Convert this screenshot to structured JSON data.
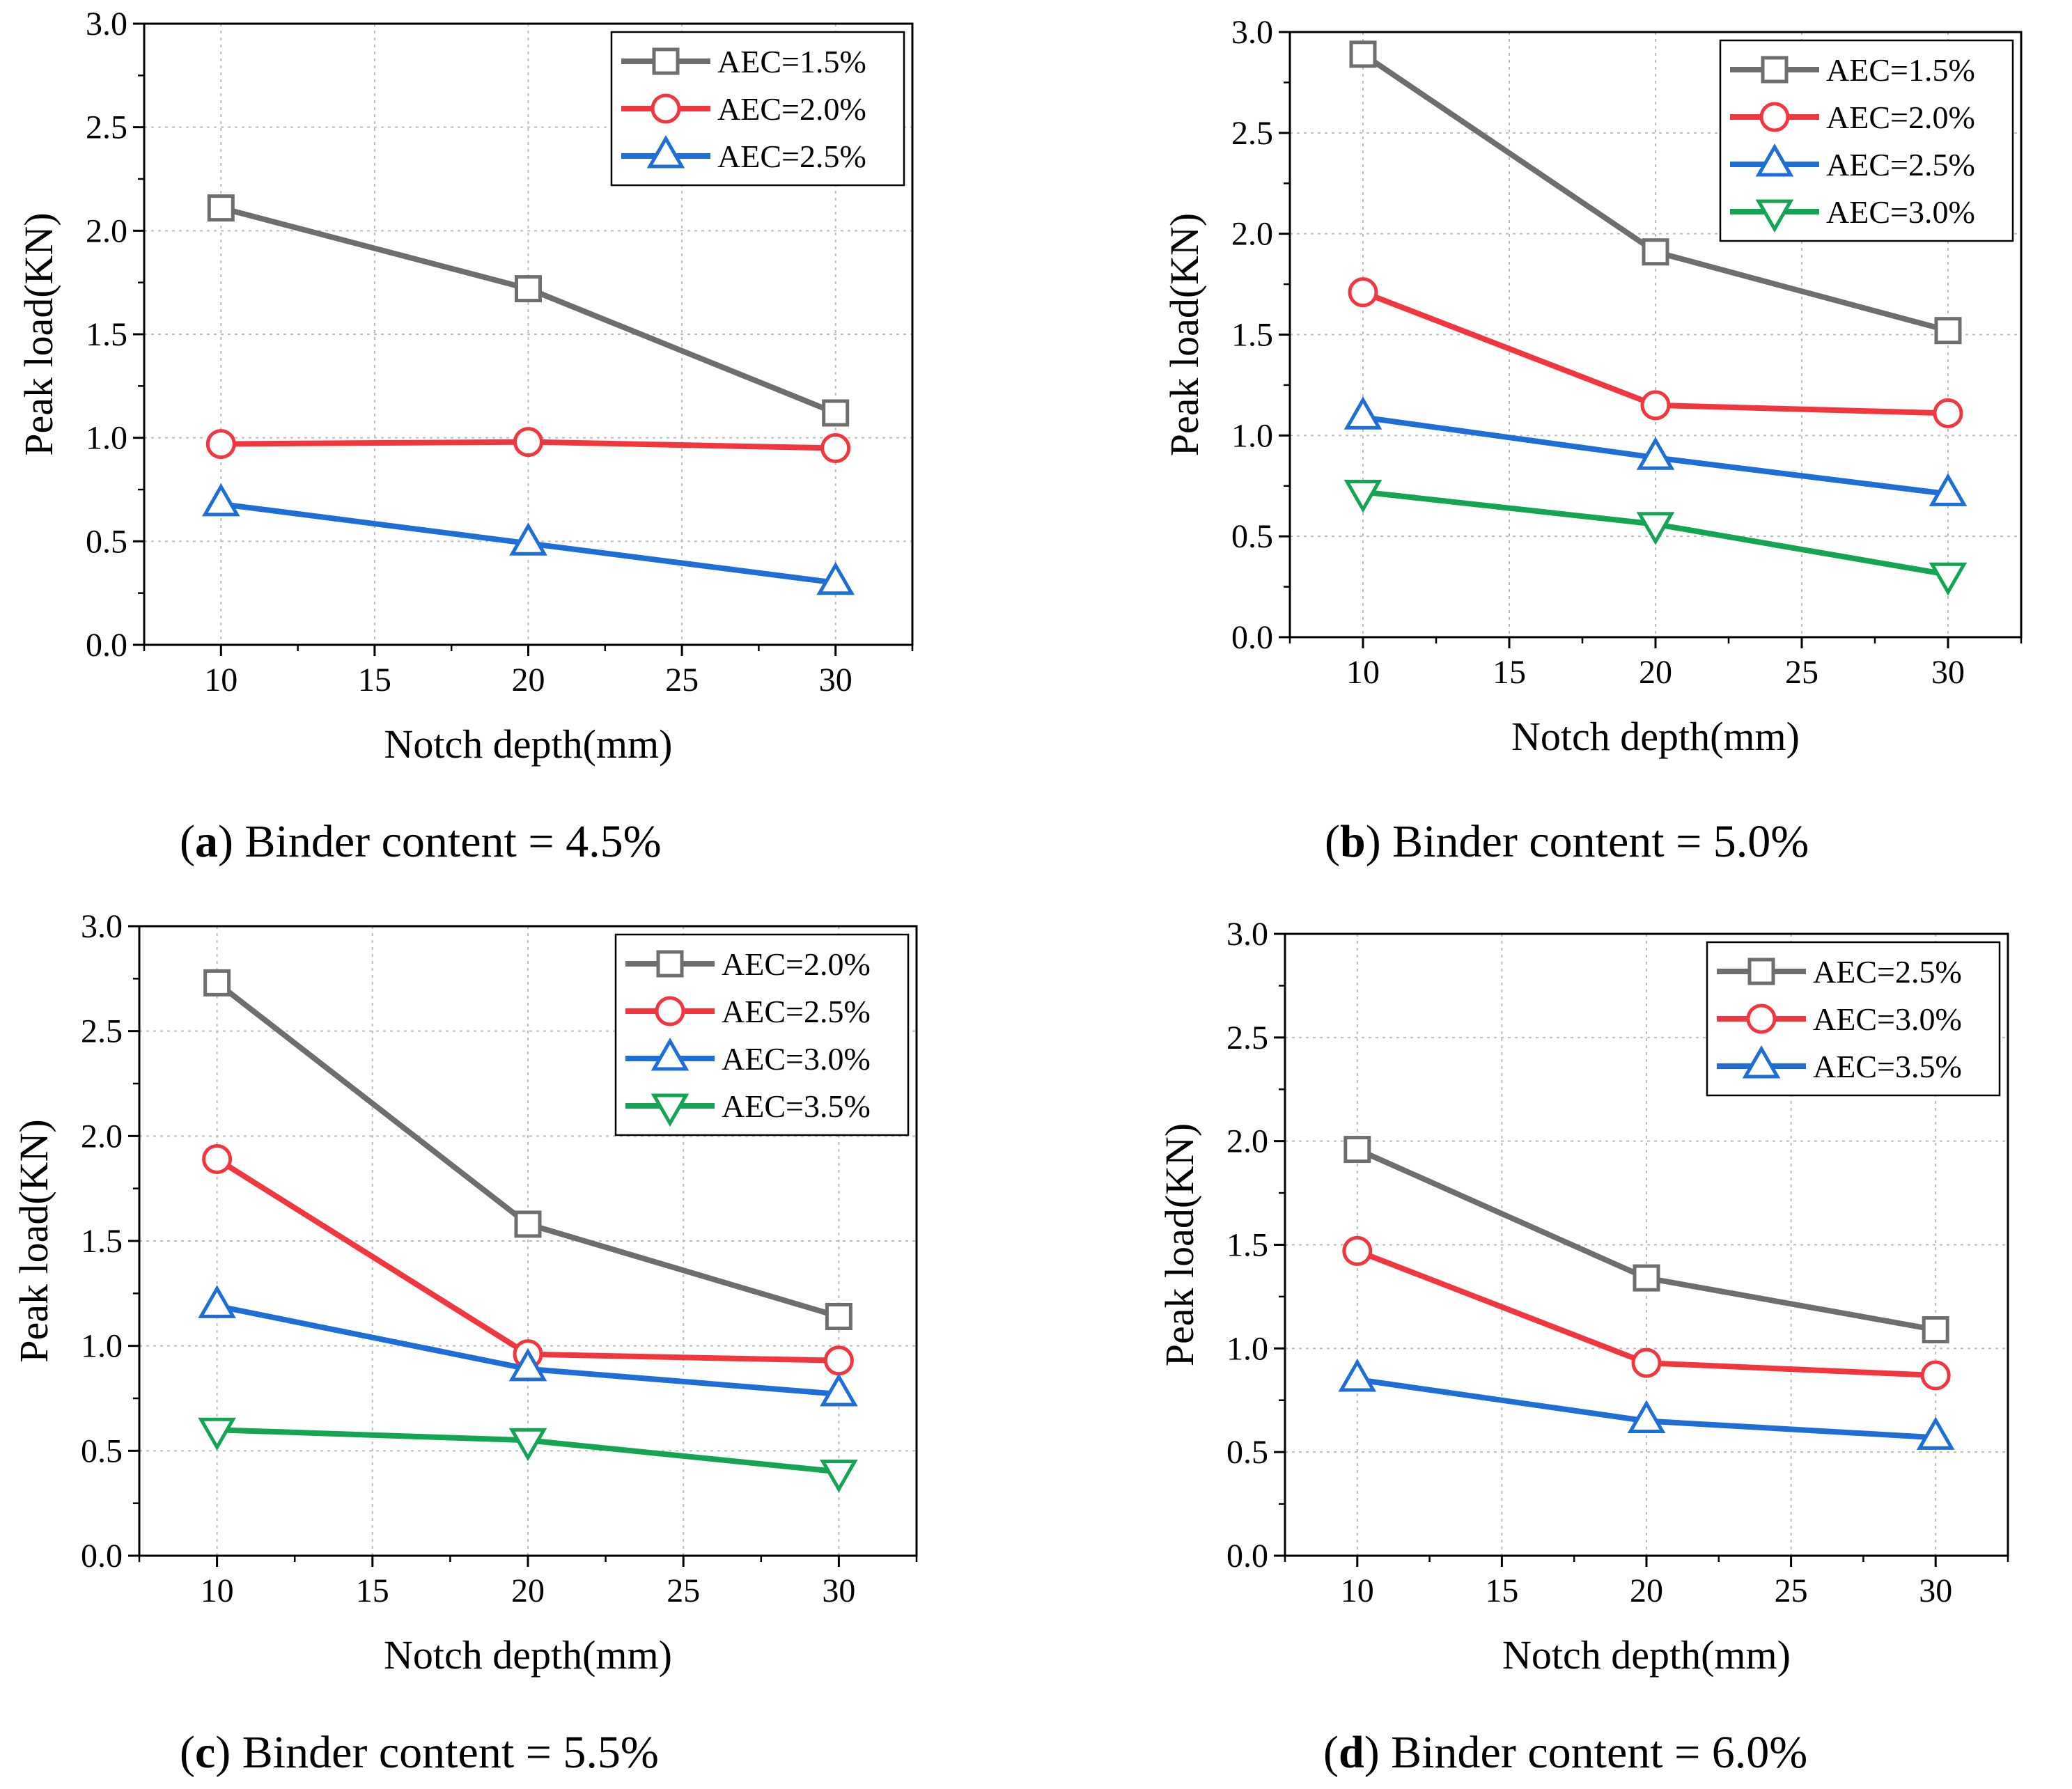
{
  "style": {
    "marker_colors": {
      "gray": "#6e6e6e",
      "red": "#f2363f",
      "blue": "#1f6ed8",
      "green": "#13a454"
    },
    "line_colors": {
      "gray": "#6e6e6e",
      "red": "#f2363f",
      "blue": "#1f6ed8",
      "green": "#13a454"
    },
    "grid_color": "#bdbdbd"
  },
  "chart_data": [
    {
      "type": "line",
      "id": "a",
      "caption_letter": "a",
      "caption_text": " Binder content = 4.5%",
      "xlabel": "Notch depth(mm)",
      "ylabel": "Peak load(KN)",
      "xlim": [
        7.5,
        32.5
      ],
      "ylim": [
        0.0,
        3.0
      ],
      "xticks": [
        10,
        15,
        20,
        25,
        30
      ],
      "xtick_labels": [
        "10",
        "15",
        "20",
        "25",
        "30"
      ],
      "yticks": [
        0.0,
        0.5,
        1.0,
        1.5,
        2.0,
        2.5,
        3.0
      ],
      "ytick_labels": [
        "0.0",
        "0.5",
        "1.0",
        "1.5",
        "2.0",
        "2.5",
        "3.0"
      ],
      "grid": true,
      "legend_position": "top-right",
      "x": [
        10,
        20,
        30
      ],
      "series": [
        {
          "name": "AEC=1.5%",
          "marker": "square",
          "color": "gray",
          "values": [
            2.11,
            1.72,
            1.12
          ]
        },
        {
          "name": "AEC=2.0%",
          "marker": "circle",
          "color": "red",
          "values": [
            0.97,
            0.98,
            0.95
          ]
        },
        {
          "name": "AEC=2.5%",
          "marker": "triangle-up",
          "color": "blue",
          "values": [
            0.68,
            0.49,
            0.3
          ]
        }
      ]
    },
    {
      "type": "line",
      "id": "b",
      "caption_letter": "b",
      "caption_text": " Binder content = 5.0%",
      "xlabel": "Notch depth(mm)",
      "ylabel": "Peak load(KN)",
      "xlim": [
        7.5,
        32.5
      ],
      "ylim": [
        0.0,
        3.0
      ],
      "xticks": [
        10,
        15,
        20,
        25,
        30
      ],
      "xtick_labels": [
        "10",
        "15",
        "20",
        "25",
        "30"
      ],
      "yticks": [
        0.0,
        0.5,
        1.0,
        1.5,
        2.0,
        2.5,
        3.0
      ],
      "ytick_labels": [
        "0.0",
        "0.5",
        "1.0",
        "1.5",
        "2.0",
        "2.5",
        "3.0"
      ],
      "grid": true,
      "legend_position": "top-right",
      "x": [
        10,
        20,
        30
      ],
      "series": [
        {
          "name": "AEC=1.5%",
          "marker": "square",
          "color": "gray",
          "values": [
            2.89,
            1.91,
            1.52
          ]
        },
        {
          "name": "AEC=2.0%",
          "marker": "circle",
          "color": "red",
          "values": [
            1.71,
            1.15,
            1.11
          ]
        },
        {
          "name": "AEC=2.5%",
          "marker": "triangle-up",
          "color": "blue",
          "values": [
            1.09,
            0.89,
            0.71
          ]
        },
        {
          "name": "AEC=3.0%",
          "marker": "triangle-down",
          "color": "green",
          "values": [
            0.72,
            0.56,
            0.31
          ]
        }
      ]
    },
    {
      "type": "line",
      "id": "c",
      "caption_letter": "c",
      "caption_text": " Binder content = 5.5%",
      "xlabel": "Notch depth(mm)",
      "ylabel": "Peak load(KN)",
      "xlim": [
        7.5,
        32.5
      ],
      "ylim": [
        0.0,
        3.0
      ],
      "xticks": [
        10,
        15,
        20,
        25,
        30
      ],
      "xtick_labels": [
        "10",
        "15",
        "20",
        "25",
        "30"
      ],
      "yticks": [
        0.0,
        0.5,
        1.0,
        1.5,
        2.0,
        2.5,
        3.0
      ],
      "ytick_labels": [
        "0.0",
        "0.5",
        "1.0",
        "1.5",
        "2.0",
        "2.5",
        "3.0"
      ],
      "grid": true,
      "legend_position": "top-right",
      "x": [
        10,
        20,
        30
      ],
      "series": [
        {
          "name": "AEC=2.0%",
          "marker": "square",
          "color": "gray",
          "values": [
            2.73,
            1.58,
            1.14
          ]
        },
        {
          "name": "AEC=2.5%",
          "marker": "circle",
          "color": "red",
          "values": [
            1.89,
            0.96,
            0.93
          ]
        },
        {
          "name": "AEC=3.0%",
          "marker": "triangle-up",
          "color": "blue",
          "values": [
            1.19,
            0.89,
            0.77
          ]
        },
        {
          "name": "AEC=3.5%",
          "marker": "triangle-down",
          "color": "green",
          "values": [
            0.6,
            0.55,
            0.4
          ]
        }
      ]
    },
    {
      "type": "line",
      "id": "d",
      "caption_letter": "d",
      "caption_text": " Binder content = 6.0%",
      "xlabel": "Notch depth(mm)",
      "ylabel": "Peak load(KN)",
      "xlim": [
        7.5,
        32.5
      ],
      "ylim": [
        0.0,
        3.0
      ],
      "xticks": [
        10,
        15,
        20,
        25,
        30
      ],
      "xtick_labels": [
        "10",
        "15",
        "20",
        "25",
        "30"
      ],
      "yticks": [
        0.0,
        0.5,
        1.0,
        1.5,
        2.0,
        2.5,
        3.0
      ],
      "ytick_labels": [
        "0.0",
        "0.5",
        "1.0",
        "1.5",
        "2.0",
        "2.5",
        "3.0"
      ],
      "grid": true,
      "legend_position": "top-right",
      "x": [
        10,
        20,
        30
      ],
      "series": [
        {
          "name": "AEC=2.5%",
          "marker": "square",
          "color": "gray",
          "values": [
            1.96,
            1.34,
            1.09
          ]
        },
        {
          "name": "AEC=3.0%",
          "marker": "circle",
          "color": "red",
          "values": [
            1.47,
            0.93,
            0.87
          ]
        },
        {
          "name": "AEC=3.5%",
          "marker": "triangle-up",
          "color": "blue",
          "values": [
            0.85,
            0.65,
            0.57
          ]
        }
      ]
    }
  ]
}
